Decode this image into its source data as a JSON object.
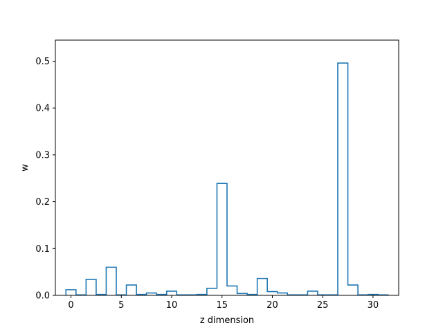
{
  "chart_data": {
    "type": "bar",
    "style": "step-histogram",
    "xlabel": "z dimension",
    "ylabel": "w",
    "xlim": [
      -1.55,
      32.55
    ],
    "ylim": [
      0,
      0.545
    ],
    "xticks": [
      0,
      5,
      10,
      15,
      20,
      25,
      30
    ],
    "yticks": [
      0.0,
      0.1,
      0.2,
      0.3,
      0.4,
      0.5
    ],
    "ytick_labels": [
      "0.0",
      "0.1",
      "0.2",
      "0.3",
      "0.4",
      "0.5"
    ],
    "categories": [
      0,
      1,
      2,
      3,
      4,
      5,
      6,
      7,
      8,
      9,
      10,
      11,
      12,
      13,
      14,
      15,
      16,
      17,
      18,
      19,
      20,
      21,
      22,
      23,
      24,
      25,
      26,
      27,
      28,
      29,
      30,
      31
    ],
    "values": [
      0.012,
      0.001,
      0.034,
      0.002,
      0.06,
      0.001,
      0.022,
      0.002,
      0.005,
      0.002,
      0.009,
      0.001,
      0.001,
      0.002,
      0.015,
      0.239,
      0.02,
      0.004,
      0.002,
      0.036,
      0.008,
      0.005,
      0.001,
      0.001,
      0.009,
      0.001,
      0.001,
      0.496,
      0.022,
      0.001,
      0.002,
      0.001
    ],
    "grid": false,
    "line_color": "#1f77b4"
  }
}
